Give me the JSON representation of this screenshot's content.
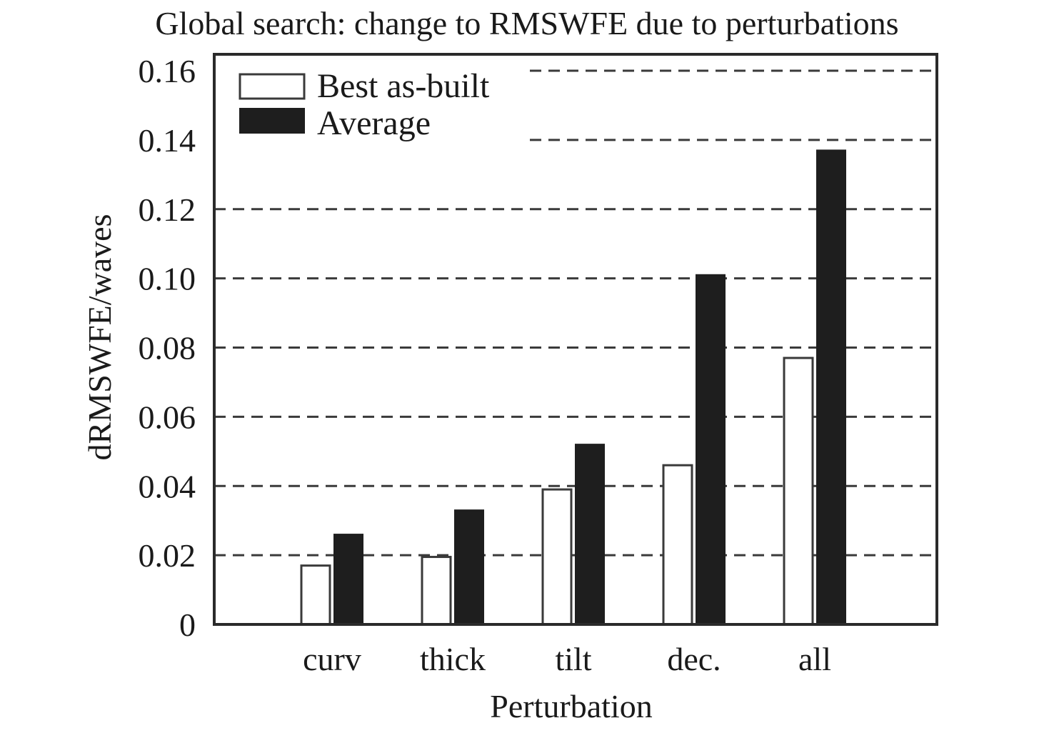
{
  "chart_data": {
    "type": "bar",
    "title": "Global search: change to RMSWFE due to perturbations",
    "xlabel": "Perturbation",
    "ylabel": "dRMSWFE/waves",
    "categories": [
      "curv",
      "thick",
      "tilt",
      "dec.",
      "all"
    ],
    "series": [
      {
        "name": "Best as-built",
        "values": [
          0.017,
          0.0195,
          0.039,
          0.046,
          0.077
        ],
        "color": "#ffffff"
      },
      {
        "name": "Average",
        "values": [
          0.026,
          0.033,
          0.052,
          0.101,
          0.137
        ],
        "color": "#1e1e1e"
      }
    ],
    "yticks": [
      "0",
      "0.02",
      "0.04",
      "0.06",
      "0.08",
      "0.10",
      "0.12",
      "0.14",
      "0.16"
    ],
    "ylim": [
      0,
      0.16
    ],
    "grid": true,
    "legend": "top-left"
  }
}
